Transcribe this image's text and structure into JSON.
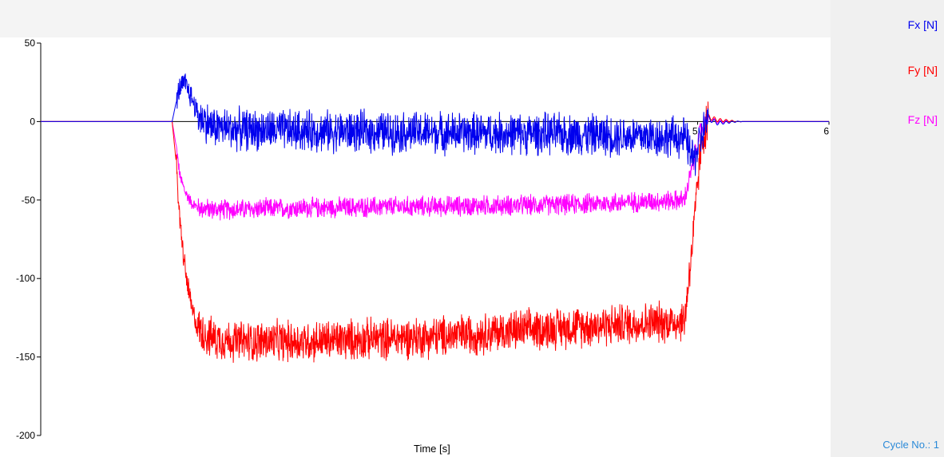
{
  "chart_data": {
    "type": "line",
    "xlabel": "Time [s]",
    "ylabel": "",
    "xlim": [
      0,
      6
    ],
    "ylim": [
      -200,
      50
    ],
    "yticks": [
      50,
      0,
      -50,
      -100,
      -150,
      -200
    ],
    "xtick_labels": [
      "5",
      "6"
    ],
    "xtick_values": [
      5,
      6
    ],
    "grid": false,
    "legend_position": "right",
    "series": [
      {
        "name": "Fx [N]",
        "color": "#0000ee",
        "noise": 22,
        "x": [
          0,
          1.0,
          1.03,
          1.06,
          1.1,
          1.15,
          1.2,
          1.3,
          1.5,
          2.0,
          3.0,
          4.0,
          4.9,
          4.97,
          5.02,
          5.08,
          5.15,
          5.3,
          6.0
        ],
        "y": [
          0,
          0,
          12,
          22,
          24,
          15,
          4,
          -3,
          -5,
          -6,
          -7,
          -8,
          -10,
          -25,
          -12,
          2,
          -1,
          0,
          0
        ]
      },
      {
        "name": "Fy [N]",
        "color": "#ff0000",
        "noise": 22,
        "x": [
          0,
          1.0,
          1.03,
          1.06,
          1.1,
          1.15,
          1.2,
          1.3,
          1.5,
          2.0,
          3.0,
          4.0,
          4.9,
          4.97,
          5.02,
          5.08,
          5.15,
          5.3,
          6.0
        ],
        "y": [
          0,
          0,
          -25,
          -65,
          -95,
          -120,
          -132,
          -138,
          -140,
          -140,
          -137,
          -131,
          -127,
          -70,
          -20,
          3,
          1,
          0,
          0
        ]
      },
      {
        "name": "Fz [N]",
        "color": "#ff00ff",
        "noise": 11,
        "x": [
          0,
          1.0,
          1.03,
          1.06,
          1.1,
          1.15,
          1.2,
          1.3,
          1.5,
          2.0,
          3.0,
          4.0,
          4.9,
          4.97,
          5.02,
          5.08,
          5.15,
          5.3,
          6.0
        ],
        "y": [
          0,
          0,
          -15,
          -35,
          -45,
          -52,
          -55,
          -56,
          -56,
          -55,
          -54,
          -53,
          -50,
          -25,
          -6,
          2,
          0,
          0,
          0
        ]
      }
    ]
  },
  "legend": {
    "fx": "Fx [N]",
    "fy": "Fy [N]",
    "fz": "Fz [N]"
  },
  "footer": {
    "cycle_label": "Cycle No.: 1"
  }
}
